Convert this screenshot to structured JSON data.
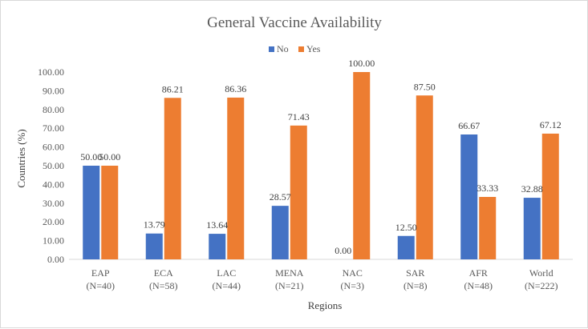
{
  "chart_data": {
    "type": "bar",
    "title": "General Vaccine Availability",
    "xlabel": "Regions",
    "ylabel": "Countries (%)",
    "ylim": [
      0,
      100
    ],
    "yticks": [
      "0.00",
      "10.00",
      "20.00",
      "30.00",
      "40.00",
      "50.00",
      "60.00",
      "70.00",
      "80.00",
      "90.00",
      "100.00"
    ],
    "categories": [
      [
        "EAP",
        "(N=40)"
      ],
      [
        "ECA",
        "(N=58)"
      ],
      [
        "LAC",
        "(N=44)"
      ],
      [
        "MENA",
        "(N=21)"
      ],
      [
        "NAC",
        "(N=3)"
      ],
      [
        "SAR",
        "(N=8)"
      ],
      [
        "AFR",
        "(N=48)"
      ],
      [
        "World",
        "(N=222)"
      ]
    ],
    "series": [
      {
        "name": "No",
        "color": "#4472c4",
        "values": [
          50.0,
          13.79,
          13.64,
          28.57,
          0.0,
          12.5,
          66.67,
          32.88
        ],
        "labels": [
          "50.00",
          "13.79",
          "13.64",
          "28.57",
          "0.00",
          "12.50",
          "66.67",
          "32.88"
        ]
      },
      {
        "name": "Yes",
        "color": "#ed7d31",
        "values": [
          50.0,
          86.21,
          86.36,
          71.43,
          100.0,
          87.5,
          33.33,
          67.12
        ],
        "labels": [
          "50.00",
          "86.21",
          "86.36",
          "71.43",
          "100.00",
          "87.50",
          "33.33",
          "67.12"
        ]
      }
    ],
    "grid": false,
    "legend_position": "top"
  }
}
